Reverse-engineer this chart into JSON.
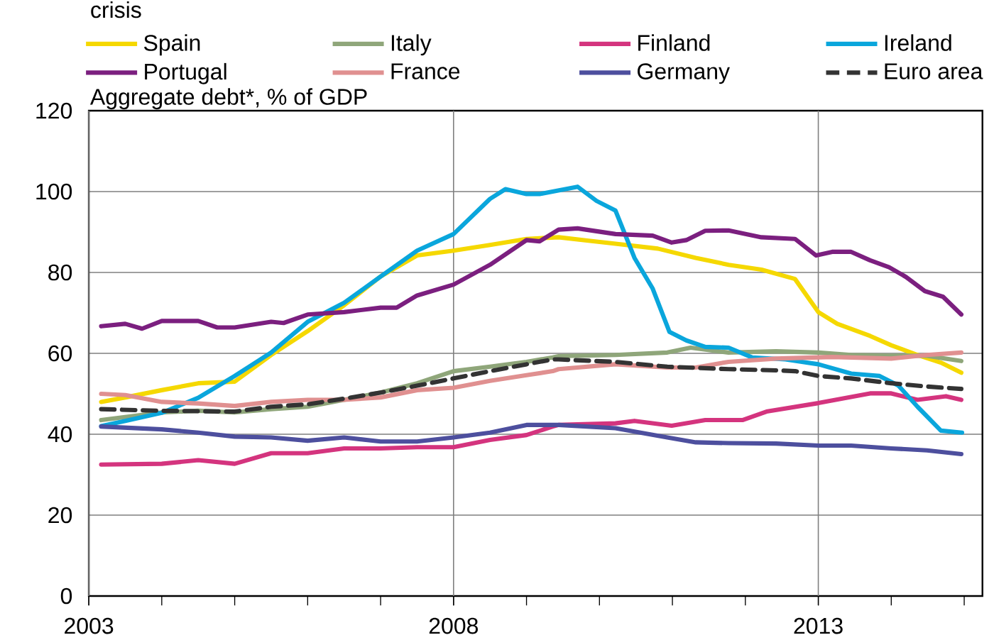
{
  "chart_data": {
    "type": "line",
    "title": "crisis",
    "subtitle": "Aggregate debt*, % of GDP",
    "xlim": [
      2003,
      2015.25
    ],
    "ylim": [
      0,
      120
    ],
    "xticks": [
      2003,
      {
        "value": 2004,
        "label": null
      },
      {
        "value": 2005,
        "label": null
      },
      {
        "value": 2006,
        "label": null
      },
      {
        "value": 2007,
        "label": null
      },
      2008,
      {
        "value": 2009,
        "label": null
      },
      {
        "value": 2010,
        "label": null
      },
      {
        "value": 2011,
        "label": null
      },
      {
        "value": 2012,
        "label": null
      },
      2013,
      {
        "value": 2014,
        "label": null
      },
      {
        "value": 2015,
        "label": null
      }
    ],
    "yticks": [
      0,
      20,
      40,
      60,
      80,
      100,
      120
    ],
    "grid": true,
    "legend": "top",
    "marker": "none",
    "line_style": "solid",
    "series": [
      {
        "name": "Spain",
        "color": "#f5d800",
        "x": [
          2003.17,
          2003.5,
          2004.0,
          2004.5,
          2005.0,
          2005.5,
          2006.0,
          2006.5,
          2007.0,
          2007.5,
          2008.0,
          2008.5,
          2009.0,
          2009.44,
          2009.83,
          2010.22,
          2010.8,
          2011.32,
          2011.77,
          2012.22,
          2012.68,
          2013.0,
          2013.26,
          2013.71,
          2014.0,
          2014.36,
          2014.68,
          2014.96
        ],
        "values": [
          48,
          49.1,
          50.9,
          52.6,
          53,
          59.6,
          65.5,
          71.9,
          79,
          84.2,
          85.4,
          86.8,
          88.3,
          88.7,
          87.9,
          87.1,
          85.9,
          83.6,
          81.9,
          80.7,
          78.4,
          70.2,
          67.3,
          64.3,
          62,
          59.6,
          57.7,
          55.2
        ]
      },
      {
        "name": "Italy",
        "color": "#8fa67a",
        "x": [
          2003.17,
          2004.0,
          2004.5,
          2005.0,
          2005.5,
          2006.0,
          2006.5,
          2007.0,
          2007.5,
          2008.0,
          2008.5,
          2009.0,
          2009.36,
          2009.44,
          2010.22,
          2010.93,
          2011.25,
          2011.77,
          2012.42,
          2013.0,
          2013.45,
          2014.0,
          2014.49,
          2014.96
        ],
        "values": [
          43.5,
          45.4,
          45.8,
          45.4,
          46.2,
          46.8,
          48.5,
          50.3,
          52.6,
          55.6,
          56.7,
          57.9,
          59,
          59.3,
          59.6,
          60.2,
          61.4,
          60.2,
          60.5,
          60.2,
          59.6,
          59.4,
          59.4,
          58.1
        ]
      },
      {
        "name": "Finland",
        "color": "#d4347e",
        "x": [
          2003.17,
          2004.0,
          2004.5,
          2005.0,
          2005.5,
          2006.0,
          2006.5,
          2007.0,
          2007.5,
          2008.0,
          2008.5,
          2009.0,
          2009.36,
          2009.44,
          2010.22,
          2010.48,
          2010.99,
          2011.45,
          2011.96,
          2012.29,
          2013.0,
          2013.71,
          2014.0,
          2014.36,
          2014.75,
          2014.96
        ],
        "values": [
          32.5,
          32.7,
          33.6,
          32.7,
          35.3,
          35.3,
          36.5,
          36.5,
          36.8,
          36.8,
          38.6,
          39.8,
          41.9,
          42.3,
          42.7,
          43.3,
          42.1,
          43.5,
          43.5,
          45.6,
          47.7,
          50.1,
          50.1,
          48.5,
          49.4,
          48.5
        ]
      },
      {
        "name": "Ireland",
        "color": "#0aa6dc",
        "x": [
          2003.17,
          2003.5,
          2004.0,
          2004.5,
          2005.0,
          2005.5,
          2006.0,
          2006.5,
          2007.0,
          2007.5,
          2008.0,
          2008.5,
          2008.71,
          2009.0,
          2009.18,
          2009.7,
          2009.96,
          2010.22,
          2010.48,
          2010.73,
          2010.96,
          2011.19,
          2011.45,
          2011.77,
          2012.09,
          2012.55,
          2013.0,
          2013.45,
          2013.84,
          2014.1,
          2014.36,
          2014.68,
          2014.97
        ],
        "values": [
          42,
          43.3,
          45.3,
          49,
          54.4,
          60.2,
          67.8,
          72.5,
          79,
          85.4,
          89.5,
          98.2,
          100.6,
          99.4,
          99.4,
          101.2,
          97.7,
          95.3,
          83.6,
          76,
          65.3,
          63.2,
          61.6,
          61.4,
          59,
          58.5,
          57.3,
          55,
          54.4,
          52,
          46.8,
          40.9,
          40.4
        ]
      },
      {
        "name": "Portugal",
        "color": "#7b1f7f",
        "x": [
          2003.17,
          2003.5,
          2003.73,
          2004.0,
          2004.5,
          2004.76,
          2005.0,
          2005.5,
          2005.67,
          2006.0,
          2006.5,
          2007.0,
          2007.22,
          2007.5,
          2008.0,
          2008.5,
          2009.0,
          2009.18,
          2009.44,
          2009.7,
          2010.22,
          2010.73,
          2010.99,
          2011.19,
          2011.45,
          2011.77,
          2012.22,
          2012.68,
          2012.97,
          2013.19,
          2013.45,
          2013.71,
          2013.97,
          2014.2,
          2014.46,
          2014.71,
          2014.96
        ],
        "values": [
          66.7,
          67.3,
          66.1,
          68,
          68,
          66.4,
          66.4,
          67.8,
          67.5,
          69.6,
          70.2,
          71.3,
          71.3,
          74.3,
          77,
          81.9,
          88,
          87.7,
          90.6,
          90.9,
          89.5,
          89.1,
          87.4,
          88,
          90.3,
          90.4,
          88.7,
          88.3,
          84.2,
          85.1,
          85.1,
          83,
          81.3,
          78.9,
          75.4,
          74,
          69.6
        ]
      },
      {
        "name": "France",
        "color": "#e09090",
        "x": [
          2003.17,
          2003.5,
          2004.0,
          2004.5,
          2005.0,
          2005.5,
          2006.0,
          2006.5,
          2007.0,
          2007.5,
          2008.0,
          2008.5,
          2009.0,
          2009.36,
          2009.44,
          2010.22,
          2010.93,
          2011.32,
          2011.77,
          2012.42,
          2013.19,
          2014.0,
          2014.49,
          2014.96
        ],
        "values": [
          50,
          49.7,
          48,
          47.6,
          47,
          48,
          48.5,
          48.5,
          49.1,
          50.9,
          51.5,
          53.2,
          54.6,
          55.6,
          56.1,
          57.3,
          56.5,
          56.5,
          57.9,
          58.7,
          59.1,
          58.7,
          59.6,
          60.2
        ]
      },
      {
        "name": "Germany",
        "color": "#4d4f9e",
        "x": [
          2003.17,
          2004.0,
          2004.5,
          2005.0,
          2005.5,
          2006.0,
          2006.5,
          2007.0,
          2007.5,
          2008.0,
          2008.5,
          2009.0,
          2009.44,
          2010.22,
          2010.93,
          2011.32,
          2011.77,
          2012.42,
          2013.0,
          2013.45,
          2014.0,
          2014.49,
          2014.96
        ],
        "values": [
          41.9,
          41.2,
          40.4,
          39.4,
          39.2,
          38.4,
          39.2,
          38.2,
          38.2,
          39.2,
          40.4,
          42.3,
          42.3,
          41.5,
          39.2,
          38,
          37.8,
          37.7,
          37.2,
          37.2,
          36.5,
          36,
          35.1
        ]
      },
      {
        "name": "Euro area",
        "color": "#333333",
        "line_style": "dashed",
        "x": [
          2003.17,
          2004.0,
          2005.0,
          2005.5,
          2006.0,
          2006.5,
          2007.0,
          2007.5,
          2008.0,
          2008.5,
          2009.0,
          2009.36,
          2009.44,
          2010.22,
          2010.93,
          2011.77,
          2012.42,
          2012.68,
          2013.0,
          2013.45,
          2014.0,
          2014.49,
          2014.96
        ],
        "values": [
          46.2,
          45.8,
          45.6,
          46.8,
          47.4,
          48.8,
          50.3,
          52,
          53.8,
          55.6,
          57.3,
          58.5,
          58.5,
          57.9,
          56.7,
          56.1,
          55.8,
          55.6,
          54.4,
          53.8,
          52.6,
          51.8,
          51.2
        ]
      }
    ]
  }
}
